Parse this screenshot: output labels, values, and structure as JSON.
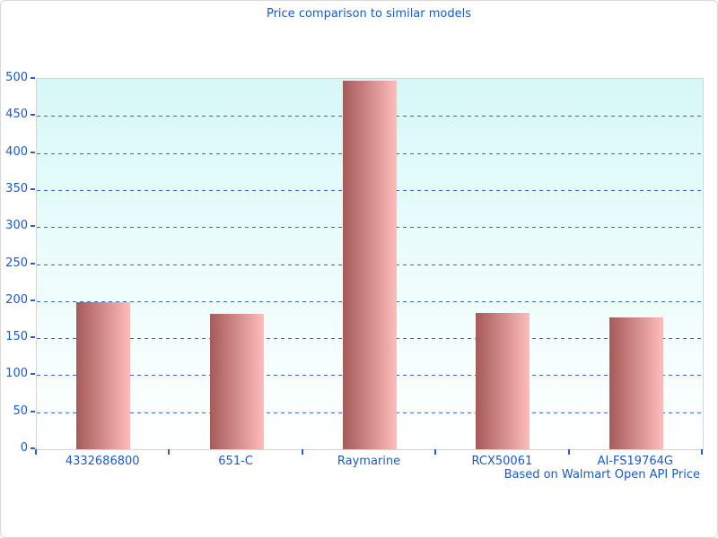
{
  "chart_data": {
    "type": "bar",
    "title": "Price comparison to similar models",
    "footnote": "Based on Walmart Open API Price",
    "categories": [
      "4332686800",
      "651-C",
      "Raymarine",
      "RCX50061",
      "AI-FS19764G"
    ],
    "values": [
      199,
      183,
      498,
      184,
      178
    ],
    "xlabel": "",
    "ylabel": "",
    "ylim": [
      0,
      500
    ],
    "ytick_step": 50,
    "grid": "horizontal-dashed",
    "legend": "none",
    "colors": {
      "title_text": "#1b5ace",
      "axis_text": "#1b5ace",
      "grid_line": "#3a68c8",
      "tick_mark": "#2a5fd0",
      "plot_border": "#d4d4d4",
      "plot_bg_top": "#d7f8f8",
      "plot_bg_bottom": "#ffffff",
      "bar_gradient_left": "#a65a5a",
      "bar_gradient_right": "#fdbcba",
      "page_border": "#d9d9d9"
    }
  }
}
